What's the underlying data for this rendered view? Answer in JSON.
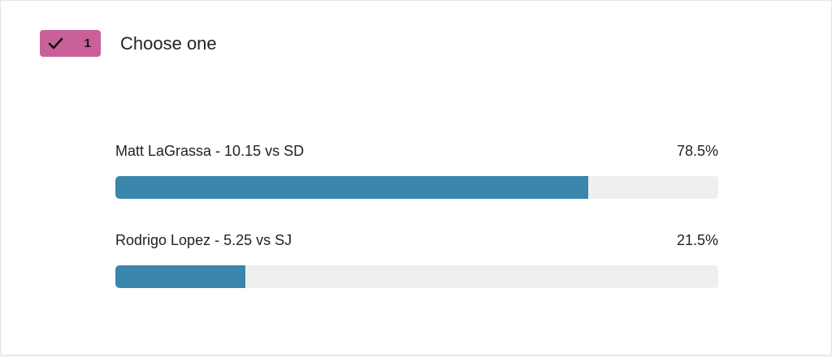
{
  "poll": {
    "badge": {
      "count": 1
    },
    "question": "Choose one",
    "options": [
      {
        "label": "Matt LaGrassa - 10.15 vs SD",
        "value": 78.5,
        "value_label": "78.5%"
      },
      {
        "label": "Rodrigo Lopez - 5.25 vs SJ",
        "value": 21.5,
        "value_label": "21.5%"
      }
    ],
    "bar_color": "#3a86ad",
    "badge_color": "#c9609a"
  }
}
